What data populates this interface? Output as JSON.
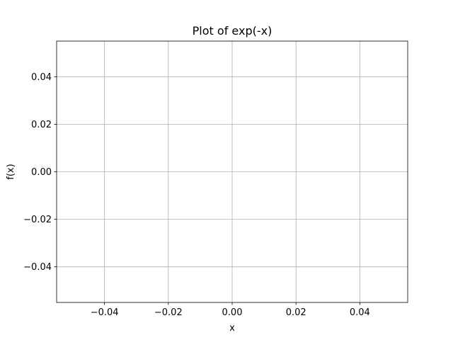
{
  "chart_data": {
    "type": "line",
    "title": "Plot of exp(-x)",
    "xlabel": "x",
    "ylabel": "f(x)",
    "xlim": [
      -0.055,
      0.055
    ],
    "ylim": [
      -0.055,
      0.055
    ],
    "xticks": [
      -0.04,
      -0.02,
      0.0,
      0.02,
      0.04
    ],
    "xtick_labels": [
      "−0.04",
      "−0.02",
      "0.00",
      "0.02",
      "0.04"
    ],
    "yticks": [
      -0.04,
      -0.02,
      0.0,
      0.02,
      0.04
    ],
    "ytick_labels": [
      "−0.04",
      "−0.02",
      "0.00",
      "0.02",
      "0.04"
    ],
    "grid": true,
    "series": [
      {
        "x": [],
        "y": []
      }
    ]
  }
}
